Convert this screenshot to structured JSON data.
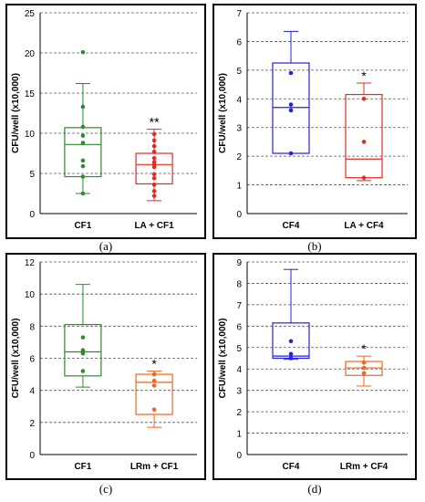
{
  "chart_data": [
    {
      "type": "box",
      "panel_label": "(a)",
      "ylabel": "CFU/well (x10,000)",
      "ylim": [
        0,
        25
      ],
      "yticks": [
        0,
        5,
        10,
        15,
        20,
        25
      ],
      "grid": true,
      "categories": [
        "CF1",
        "LA + CF1"
      ],
      "boxes": [
        {
          "category": "CF1",
          "color": "#2e8b2e",
          "min": 2.5,
          "q1": 4.6,
          "median": 8.6,
          "q3": 10.7,
          "max": 16.2,
          "points": [
            20.1,
            13.3,
            10.8,
            9.7,
            8.8,
            6.6,
            5.9,
            4.6,
            2.5
          ]
        },
        {
          "category": "LA + CF1",
          "color": "#e8281e",
          "min": 1.6,
          "q1": 3.7,
          "median": 6.1,
          "q3": 7.5,
          "max": 10.5,
          "points": [
            9.9,
            9.1,
            8.4,
            7.7,
            6.9,
            6.4,
            6.1,
            5.8,
            4.9,
            4.4,
            3.6,
            2.8,
            2.2
          ],
          "annotation": "**"
        }
      ]
    },
    {
      "type": "box",
      "panel_label": "(b)",
      "ylabel": "CFU/well (x10,000)",
      "ylim": [
        0,
        7
      ],
      "yticks": [
        0,
        1,
        2,
        3,
        4,
        5,
        6,
        7
      ],
      "grid": true,
      "categories": [
        "CF4",
        "LA + CF4"
      ],
      "boxes": [
        {
          "category": "CF4",
          "color": "#2222e0",
          "min": 2.1,
          "q1": 2.1,
          "median": 3.7,
          "q3": 5.25,
          "max": 6.35,
          "points": [
            4.9,
            3.8,
            3.6,
            2.1
          ]
        },
        {
          "category": "LA + CF4",
          "color": "#e8281e",
          "min": 1.15,
          "q1": 1.25,
          "median": 1.9,
          "q3": 4.15,
          "max": 4.55,
          "points": [
            4.0,
            2.5,
            1.25
          ],
          "annotation": "*"
        }
      ]
    },
    {
      "type": "box",
      "panel_label": "(c)",
      "ylabel": "CFU/well (x10,000)",
      "ylim": [
        0,
        12
      ],
      "yticks": [
        0,
        2,
        4,
        6,
        8,
        10,
        12
      ],
      "grid": true,
      "categories": [
        "CF1",
        "LRm + CF1"
      ],
      "boxes": [
        {
          "category": "CF1",
          "color": "#2e8b2e",
          "min": 4.2,
          "q1": 4.9,
          "median": 6.4,
          "q3": 8.1,
          "max": 10.6,
          "points": [
            7.3,
            6.5,
            6.3,
            5.2
          ]
        },
        {
          "category": "LRm + CF1",
          "color": "#f06420",
          "min": 1.7,
          "q1": 2.5,
          "median": 4.5,
          "q3": 5.0,
          "max": 5.2,
          "points": [
            5.0,
            4.6,
            4.3,
            2.8
          ],
          "annotation": "*"
        }
      ]
    },
    {
      "type": "box",
      "panel_label": "(d)",
      "ylabel": "CFU/well (x10,000)",
      "ylim": [
        0,
        9
      ],
      "yticks": [
        0,
        1,
        2,
        3,
        4,
        5,
        6,
        7,
        8,
        9
      ],
      "grid": true,
      "categories": [
        "CF4",
        "LRm + CF4"
      ],
      "boxes": [
        {
          "category": "CF4",
          "color": "#2222e0",
          "min": 4.45,
          "q1": 4.5,
          "median": 4.6,
          "q3": 6.15,
          "max": 8.65,
          "points": [
            5.3,
            4.7,
            4.5
          ]
        },
        {
          "category": "LRm + CF4",
          "color": "#f06420",
          "min": 3.2,
          "q1": 3.7,
          "median": 4.05,
          "q3": 4.35,
          "max": 4.6,
          "points": [
            4.3,
            4.05,
            3.8
          ],
          "annotation": "*"
        }
      ]
    }
  ]
}
